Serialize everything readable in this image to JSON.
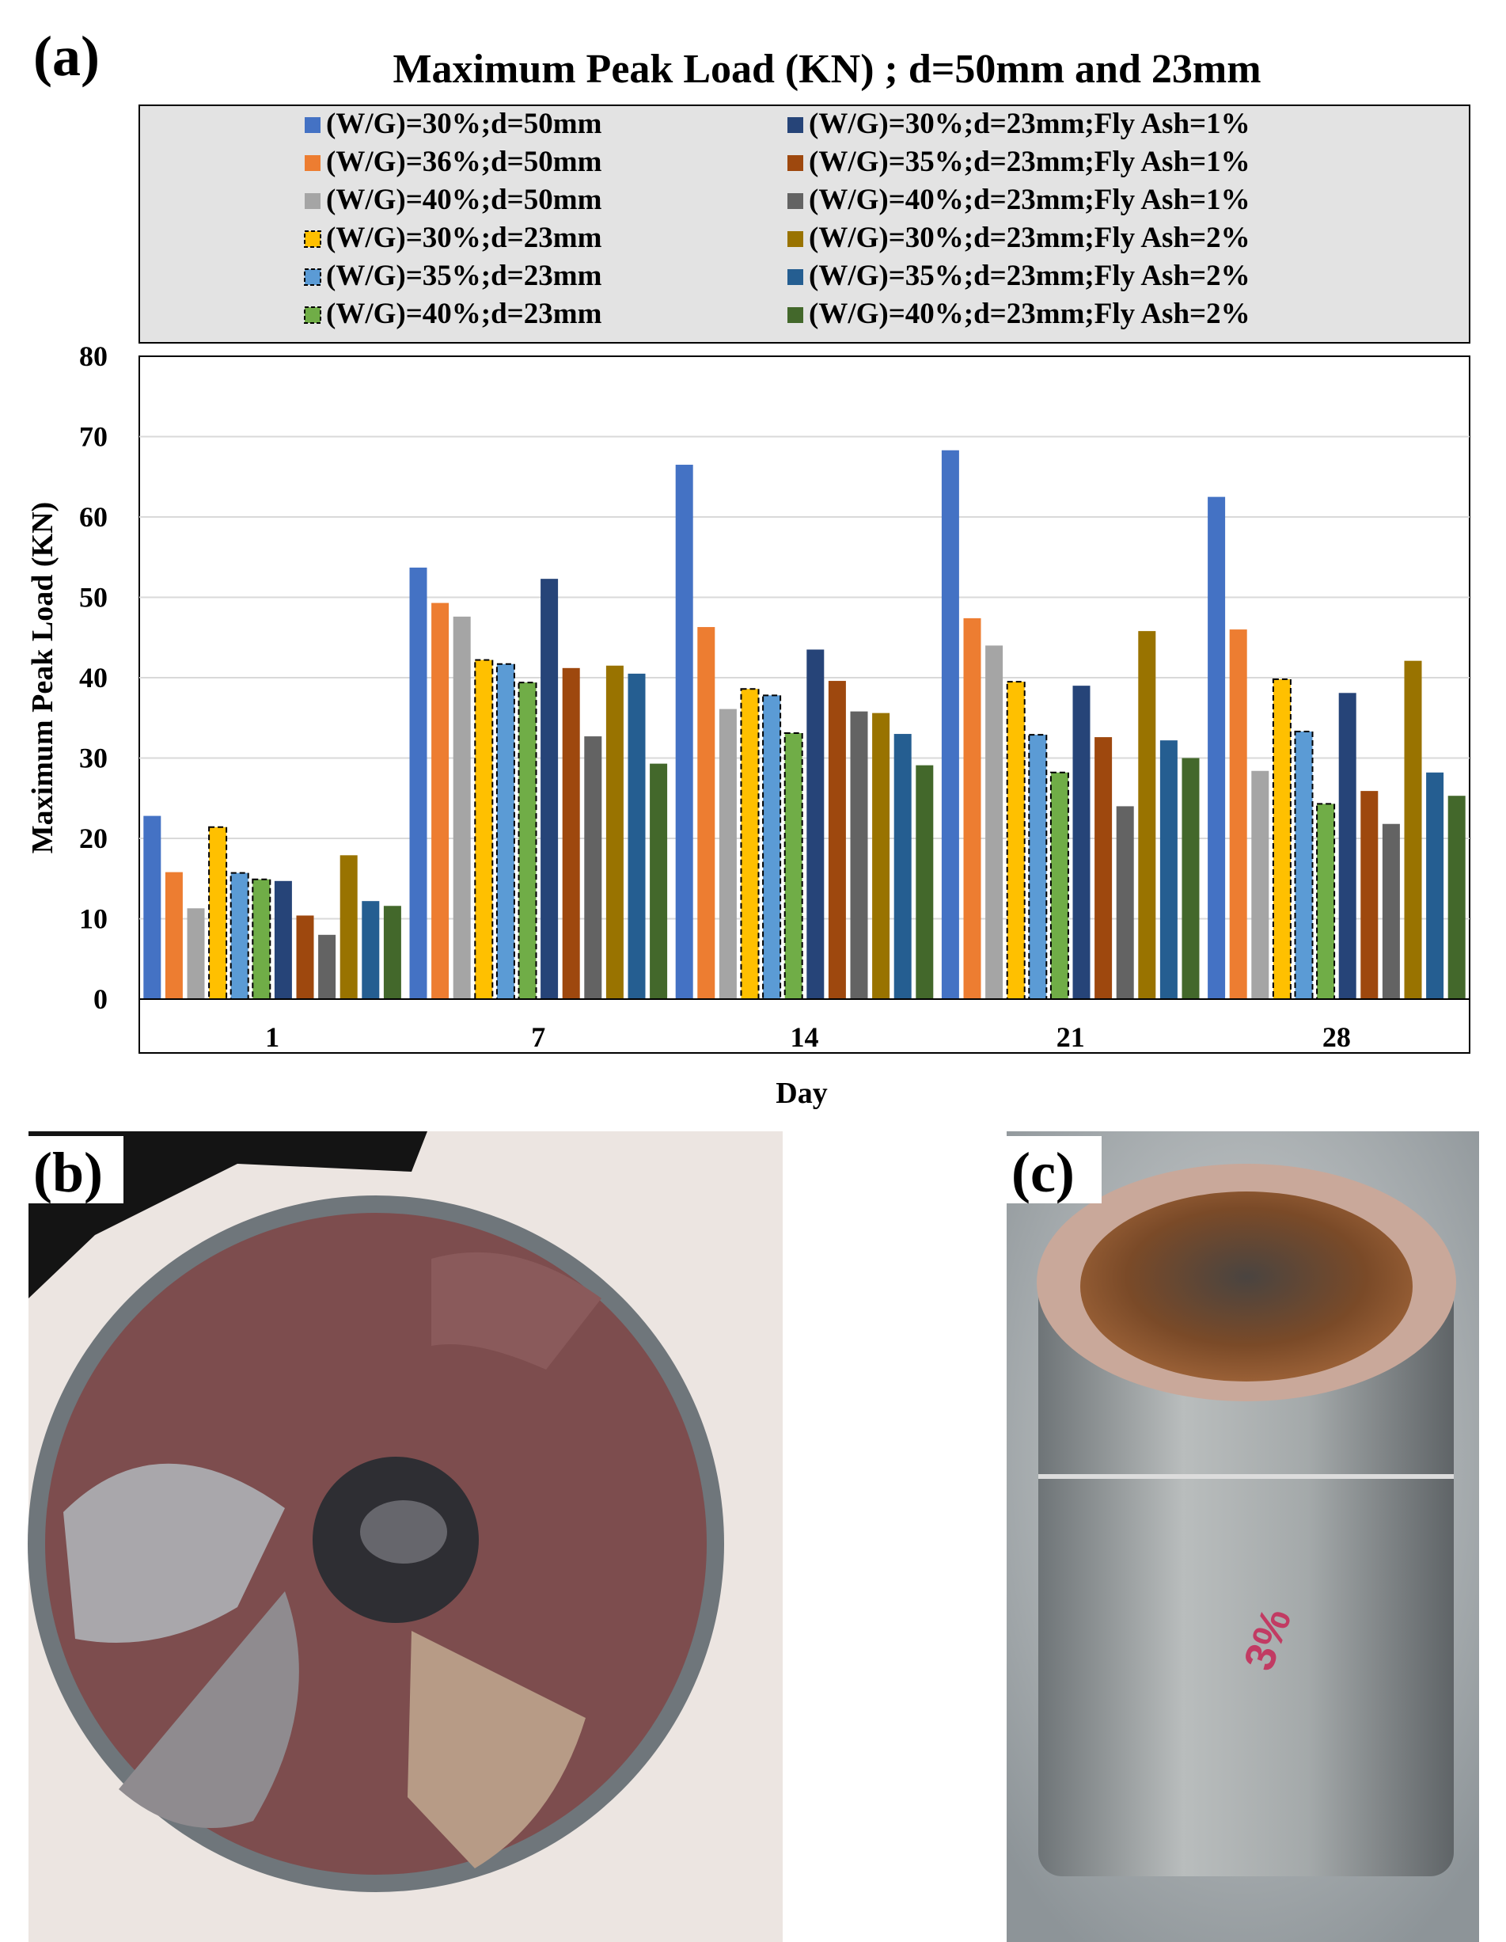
{
  "panels": {
    "a": "(a)",
    "b": "(b)",
    "c": "(c)"
  },
  "chart_data": {
    "type": "bar",
    "title": "Maximum Peak Load (KN) ; d=50mm and 23mm",
    "xlabel": "Day",
    "ylabel": "Maximum Peak Load (KN)",
    "ylim": [
      0,
      80
    ],
    "yticks": [
      0,
      10,
      20,
      30,
      40,
      50,
      60,
      70,
      80
    ],
    "grid": true,
    "legend_position": "top",
    "categories": [
      "1",
      "7",
      "14",
      "21",
      "28"
    ],
    "series": [
      {
        "name": "(W/G)=30%;d=50mm",
        "color": "#4472C4",
        "style": "solid",
        "values": [
          22.8,
          53.7,
          66.5,
          68.3,
          62.5
        ]
      },
      {
        "name": "(W/G)=36%;d=50mm",
        "color": "#ED7D31",
        "style": "solid",
        "values": [
          15.8,
          49.3,
          46.3,
          47.4,
          46.0
        ]
      },
      {
        "name": "(W/G)=40%;d=50mm",
        "color": "#A5A5A5",
        "style": "solid",
        "values": [
          11.3,
          47.6,
          36.1,
          44.0,
          28.4
        ]
      },
      {
        "name": "(W/G)=30%;d=23mm",
        "color": "#FFC000",
        "style": "dashed",
        "values": [
          21.4,
          42.2,
          38.6,
          39.5,
          39.8
        ]
      },
      {
        "name": "(W/G)=35%;d=23mm",
        "color": "#5B9BD5",
        "style": "dashed",
        "values": [
          15.7,
          41.7,
          37.8,
          32.9,
          33.3
        ]
      },
      {
        "name": "(W/G)=40%;d=23mm",
        "color": "#70AD47",
        "style": "dashed",
        "values": [
          14.9,
          39.4,
          33.1,
          28.2,
          24.3
        ]
      },
      {
        "name": "(W/G)=30%;d=23mm;Fly Ash=1%",
        "color": "#264478",
        "style": "solid",
        "values": [
          14.7,
          52.3,
          43.5,
          39.0,
          38.1
        ]
      },
      {
        "name": "(W/G)=35%;d=23mm;Fly Ash=1%",
        "color": "#9E480E",
        "style": "solid",
        "values": [
          10.4,
          41.2,
          39.6,
          32.6,
          25.9
        ]
      },
      {
        "name": "(W/G)=40%;d=23mm;Fly Ash=1%",
        "color": "#636363",
        "style": "solid",
        "values": [
          8.0,
          32.7,
          35.8,
          24.0,
          21.8
        ]
      },
      {
        "name": "(W/G)=30%;d=23mm;Fly Ash=2%",
        "color": "#997300",
        "style": "solid",
        "values": [
          17.9,
          41.5,
          35.6,
          45.8,
          42.1
        ]
      },
      {
        "name": "(W/G)=35%;d=23mm;Fly Ash=2%",
        "color": "#255E91",
        "style": "solid",
        "values": [
          12.2,
          40.5,
          33.0,
          32.2,
          28.2
        ]
      },
      {
        "name": "(W/G)=40%;d=23mm;Fly Ash=2%",
        "color": "#43682B",
        "style": "solid",
        "values": [
          11.6,
          29.3,
          29.1,
          30.0,
          25.3
        ]
      }
    ]
  },
  "photos": {
    "b": {
      "description_icon": "rebar-pullout-cross-section"
    },
    "c": {
      "marking": "3%"
    }
  }
}
